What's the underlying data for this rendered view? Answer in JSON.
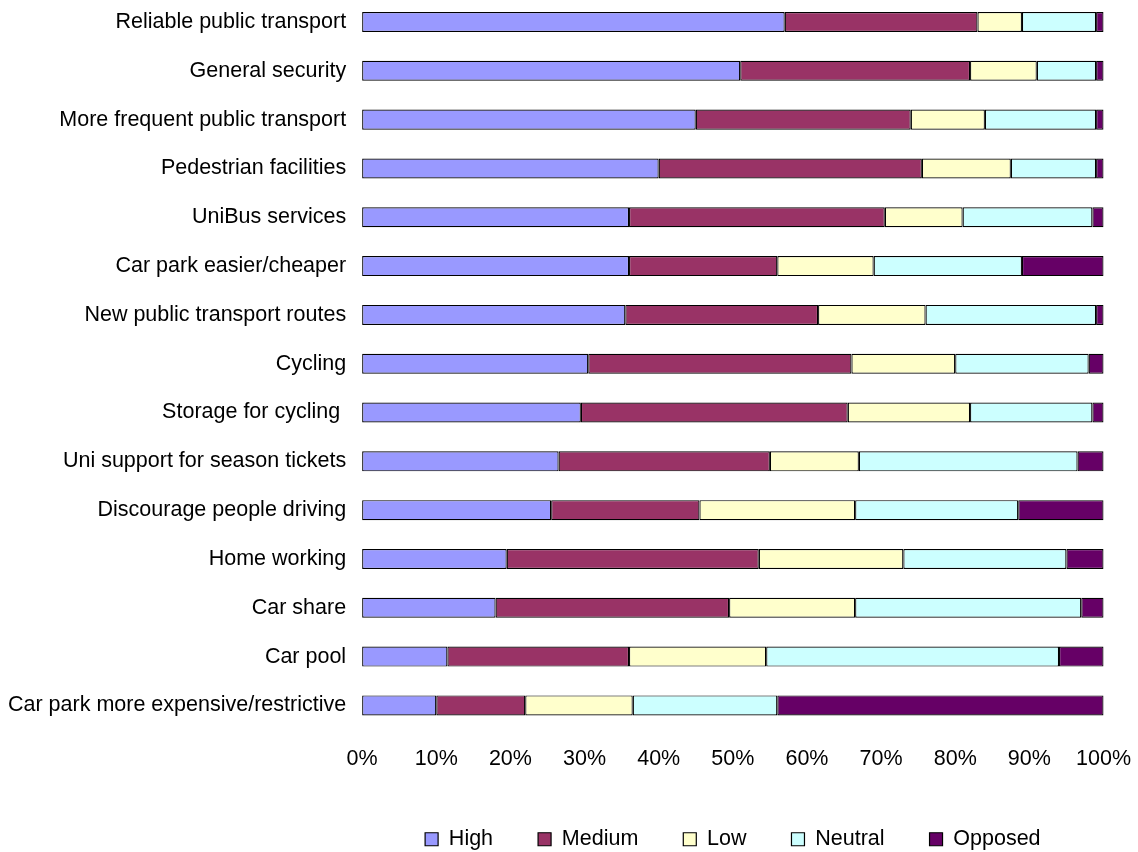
{
  "chart_data": {
    "type": "bar",
    "orientation": "horizontal",
    "stacked": true,
    "categories": [
      "Reliable public transport",
      "General security",
      "More frequent public transport",
      "Pedestrian facilities",
      "UniBus services",
      "Car park easier/cheaper",
      "New public transport routes",
      "Cycling",
      "Storage for cycling ",
      "Uni support for season tickets",
      "Discourage people driving",
      "Home working",
      "Car share",
      "Car pool",
      "Car park more expensive/restrictive"
    ],
    "series": [
      {
        "name": "High",
        "color": "#9999ff",
        "values": [
          57,
          51,
          45,
          40,
          36,
          36,
          35.5,
          30.5,
          29.5,
          26.5,
          25.5,
          19.5,
          18,
          11.5,
          10
        ]
      },
      {
        "name": "Medium",
        "color": "#993366",
        "values": [
          26,
          31,
          29,
          35.5,
          34.5,
          20,
          26,
          35.5,
          36,
          28.5,
          20,
          34,
          31.5,
          24.5,
          12
        ]
      },
      {
        "name": "Low",
        "color": "#ffffcc",
        "values": [
          6,
          9,
          10,
          12,
          10.5,
          13,
          14.5,
          14,
          16.5,
          12,
          21,
          19.5,
          17,
          18.5,
          14.5
        ]
      },
      {
        "name": "Neutral",
        "color": "#ccffff",
        "values": [
          10,
          8,
          15,
          11.5,
          17.5,
          20,
          23,
          18,
          16.5,
          29.5,
          22,
          22,
          30.5,
          39.5,
          19.5
        ]
      },
      {
        "name": "Opposed",
        "color": "#660066",
        "values": [
          1,
          1,
          1,
          1,
          1.5,
          11,
          1,
          2,
          1.5,
          3.5,
          11.5,
          5,
          3,
          6,
          44
        ]
      }
    ],
    "xlim": [
      0,
      100
    ],
    "xticks": [
      {
        "value": 0,
        "label": "0%"
      },
      {
        "value": 10,
        "label": "10%"
      },
      {
        "value": 20,
        "label": "20%"
      },
      {
        "value": 30,
        "label": "30%"
      },
      {
        "value": 40,
        "label": "40%"
      },
      {
        "value": 50,
        "label": "50%"
      },
      {
        "value": 60,
        "label": "60%"
      },
      {
        "value": 70,
        "label": "70%"
      },
      {
        "value": 80,
        "label": "80%"
      },
      {
        "value": 90,
        "label": "90%"
      },
      {
        "value": 100,
        "label": "100%"
      }
    ],
    "legend": "bottom",
    "grid": false
  }
}
